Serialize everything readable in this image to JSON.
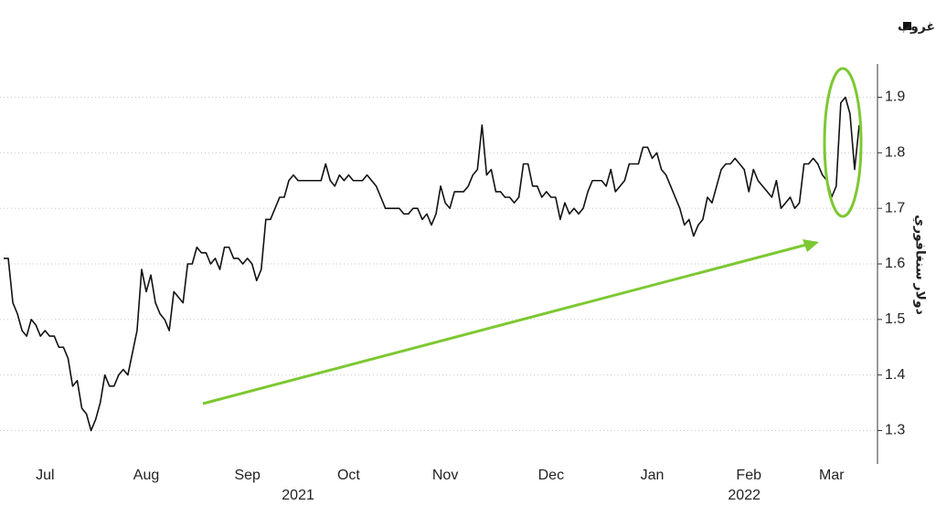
{
  "chart_data": {
    "type": "line",
    "y_label": "دولار سنغافوري",
    "categories": [
      null,
      null,
      null,
      null,
      null,
      null,
      null,
      null,
      null,
      "Jul",
      null,
      null,
      null,
      null,
      null,
      null,
      null,
      null,
      null,
      null,
      null,
      null,
      null,
      null,
      null,
      null,
      null,
      null,
      null,
      null,
      null,
      "Aug",
      null,
      null,
      null,
      null,
      null,
      null,
      null,
      null,
      null,
      null,
      null,
      null,
      null,
      null,
      null,
      null,
      null,
      null,
      null,
      null,
      null,
      "Sep",
      null,
      null,
      null,
      null,
      null,
      null,
      null,
      null,
      null,
      null,
      null,
      null,
      null,
      null,
      null,
      null,
      null,
      null,
      null,
      null,
      null,
      "Oct",
      null,
      null,
      null,
      null,
      null,
      null,
      null,
      null,
      null,
      null,
      null,
      null,
      null,
      null,
      null,
      null,
      null,
      null,
      null,
      null,
      "Nov",
      null,
      null,
      null,
      null,
      null,
      null,
      null,
      null,
      null,
      null,
      null,
      null,
      null,
      null,
      null,
      null,
      null,
      null,
      null,
      null,
      null,
      null,
      "Dec",
      null,
      null,
      null,
      null,
      null,
      null,
      null,
      null,
      null,
      null,
      null,
      null,
      null,
      null,
      null,
      null,
      null,
      null,
      null,
      null,
      null,
      "Jan",
      null,
      null,
      null,
      null,
      null,
      null,
      null,
      null,
      null,
      null,
      null,
      null,
      null,
      null,
      null,
      null,
      null,
      null,
      null,
      null,
      "Feb",
      null,
      null,
      null,
      null,
      null,
      null,
      null,
      null,
      null,
      null,
      null,
      null,
      null,
      null,
      null,
      null,
      null,
      "Mar",
      null,
      null,
      null,
      null,
      null,
      null
    ],
    "category_years": [
      null,
      null,
      null,
      null,
      null,
      null,
      null,
      null,
      null,
      null,
      null,
      null,
      null,
      null,
      null,
      null,
      null,
      null,
      null,
      null,
      null,
      null,
      null,
      null,
      null,
      null,
      null,
      null,
      null,
      null,
      null,
      null,
      null,
      null,
      null,
      null,
      null,
      null,
      null,
      null,
      null,
      null,
      null,
      null,
      null,
      null,
      null,
      null,
      null,
      null,
      null,
      null,
      null,
      null,
      null,
      null,
      null,
      null,
      null,
      null,
      null,
      null,
      null,
      null,
      "2021",
      null,
      null,
      null,
      null,
      null,
      null,
      null,
      null,
      null,
      null,
      null,
      null,
      null,
      null,
      null,
      null,
      null,
      null,
      null,
      null,
      null,
      null,
      null,
      null,
      null,
      null,
      null,
      null,
      null,
      null,
      null,
      null,
      null,
      null,
      null,
      null,
      null,
      null,
      null,
      null,
      null,
      null,
      null,
      null,
      null,
      null,
      null,
      null,
      null,
      null,
      null,
      null,
      null,
      null,
      null,
      null,
      null,
      null,
      null,
      null,
      null,
      null,
      null,
      null,
      null,
      null,
      null,
      null,
      null,
      null,
      null,
      null,
      null,
      null,
      null,
      null,
      null,
      null,
      null,
      null,
      null,
      null,
      null,
      null,
      null,
      null,
      null,
      null,
      null,
      null,
      null,
      null,
      null,
      null,
      null,
      null,
      "2022",
      null,
      null,
      null,
      null,
      null,
      null,
      null,
      null,
      null,
      null,
      null,
      null,
      null,
      null,
      null,
      null,
      null,
      null,
      null,
      null,
      null,
      null,
      null,
      null,
      null
    ],
    "series": [
      {
        "name": "سعر سهم أولام غروب",
        "color": "#111111",
        "values": [
          1.61,
          1.61,
          1.53,
          1.51,
          1.48,
          1.47,
          1.5,
          1.49,
          1.47,
          1.48,
          1.47,
          1.47,
          1.45,
          1.45,
          1.43,
          1.38,
          1.39,
          1.34,
          1.33,
          1.3,
          1.32,
          1.35,
          1.4,
          1.38,
          1.38,
          1.4,
          1.41,
          1.4,
          1.44,
          1.48,
          1.59,
          1.55,
          1.58,
          1.53,
          1.51,
          1.5,
          1.48,
          1.55,
          1.54,
          1.53,
          1.6,
          1.6,
          1.63,
          1.62,
          1.62,
          1.6,
          1.61,
          1.59,
          1.63,
          1.63,
          1.61,
          1.61,
          1.6,
          1.61,
          1.6,
          1.57,
          1.59,
          1.68,
          1.68,
          1.7,
          1.72,
          1.72,
          1.75,
          1.76,
          1.75,
          1.75,
          1.75,
          1.75,
          1.75,
          1.75,
          1.78,
          1.75,
          1.74,
          1.76,
          1.75,
          1.76,
          1.75,
          1.75,
          1.75,
          1.76,
          1.75,
          1.74,
          1.72,
          1.7,
          1.7,
          1.7,
          1.7,
          1.69,
          1.69,
          1.7,
          1.7,
          1.68,
          1.69,
          1.67,
          1.69,
          1.74,
          1.71,
          1.7,
          1.73,
          1.73,
          1.73,
          1.74,
          1.76,
          1.77,
          1.85,
          1.76,
          1.77,
          1.73,
          1.73,
          1.72,
          1.72,
          1.71,
          1.72,
          1.78,
          1.78,
          1.74,
          1.74,
          1.72,
          1.73,
          1.72,
          1.72,
          1.68,
          1.71,
          1.69,
          1.7,
          1.69,
          1.7,
          1.73,
          1.75,
          1.75,
          1.75,
          1.74,
          1.77,
          1.73,
          1.74,
          1.75,
          1.78,
          1.78,
          1.78,
          1.81,
          1.81,
          1.79,
          1.8,
          1.77,
          1.76,
          1.74,
          1.72,
          1.7,
          1.67,
          1.68,
          1.65,
          1.67,
          1.68,
          1.72,
          1.71,
          1.74,
          1.77,
          1.78,
          1.78,
          1.79,
          1.78,
          1.77,
          1.73,
          1.77,
          1.75,
          1.74,
          1.73,
          1.72,
          1.75,
          1.7,
          1.71,
          1.72,
          1.7,
          1.71,
          1.78,
          1.78,
          1.79,
          1.78,
          1.76,
          1.75,
          1.72,
          1.74,
          1.89,
          1.9,
          1.87,
          1.77,
          1.85
        ]
      }
    ],
    "ylim": [
      1.24,
      1.96
    ],
    "yticks": [
      1.3,
      1.4,
      1.5,
      1.6,
      1.7,
      1.8,
      1.9
    ],
    "y_axis_side": "right",
    "grid": true,
    "legend": "top-right"
  }
}
